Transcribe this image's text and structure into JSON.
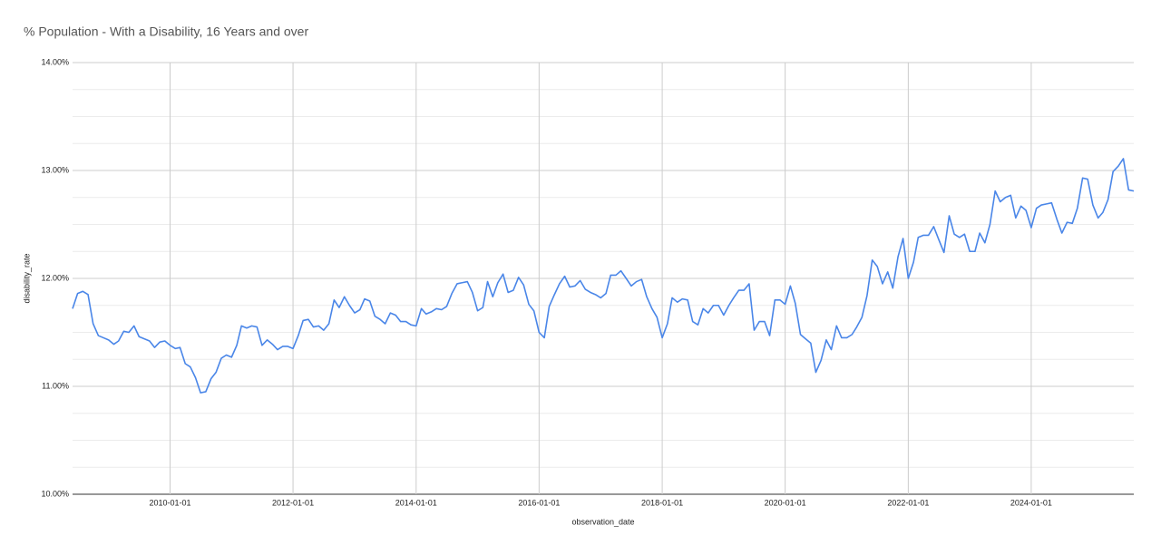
{
  "chart_data": {
    "type": "line",
    "title": "% Population - With a Disability, 16 Years and over",
    "x_label": "observation_date",
    "y_label": "disability_rate",
    "x": [
      "2008-06-01",
      "2008-07-01",
      "2008-08-01",
      "2008-09-01",
      "2008-10-01",
      "2008-11-01",
      "2008-12-01",
      "2009-01-01",
      "2009-02-01",
      "2009-03-01",
      "2009-04-01",
      "2009-05-01",
      "2009-06-01",
      "2009-07-01",
      "2009-08-01",
      "2009-09-01",
      "2009-10-01",
      "2009-11-01",
      "2009-12-01",
      "2010-01-01",
      "2010-02-01",
      "2010-03-01",
      "2010-04-01",
      "2010-05-01",
      "2010-06-01",
      "2010-07-01",
      "2010-08-01",
      "2010-09-01",
      "2010-10-01",
      "2010-11-01",
      "2010-12-01",
      "2011-01-01",
      "2011-02-01",
      "2011-03-01",
      "2011-04-01",
      "2011-05-01",
      "2011-06-01",
      "2011-07-01",
      "2011-08-01",
      "2011-09-01",
      "2011-10-01",
      "2011-11-01",
      "2011-12-01",
      "2012-01-01",
      "2012-02-01",
      "2012-03-01",
      "2012-04-01",
      "2012-05-01",
      "2012-06-01",
      "2012-07-01",
      "2012-08-01",
      "2012-09-01",
      "2012-10-01",
      "2012-11-01",
      "2012-12-01",
      "2013-01-01",
      "2013-02-01",
      "2013-03-01",
      "2013-04-01",
      "2013-05-01",
      "2013-06-01",
      "2013-07-01",
      "2013-08-01",
      "2013-09-01",
      "2013-10-01",
      "2013-11-01",
      "2013-12-01",
      "2014-01-01",
      "2014-02-01",
      "2014-03-01",
      "2014-04-01",
      "2014-05-01",
      "2014-06-01",
      "2014-07-01",
      "2014-08-01",
      "2014-09-01",
      "2014-10-01",
      "2014-11-01",
      "2014-12-01",
      "2015-01-01",
      "2015-02-01",
      "2015-03-01",
      "2015-04-01",
      "2015-05-01",
      "2015-06-01",
      "2015-07-01",
      "2015-08-01",
      "2015-09-01",
      "2015-10-01",
      "2015-11-01",
      "2015-12-01",
      "2016-01-01",
      "2016-02-01",
      "2016-03-01",
      "2016-04-01",
      "2016-05-01",
      "2016-06-01",
      "2016-07-01",
      "2016-08-01",
      "2016-09-01",
      "2016-10-01",
      "2016-11-01",
      "2016-12-01",
      "2017-01-01",
      "2017-02-01",
      "2017-03-01",
      "2017-04-01",
      "2017-05-01",
      "2017-06-01",
      "2017-07-01",
      "2017-08-01",
      "2017-09-01",
      "2017-10-01",
      "2017-11-01",
      "2017-12-01",
      "2018-01-01",
      "2018-02-01",
      "2018-03-01",
      "2018-04-01",
      "2018-05-01",
      "2018-06-01",
      "2018-07-01",
      "2018-08-01",
      "2018-09-01",
      "2018-10-01",
      "2018-11-01",
      "2018-12-01",
      "2019-01-01",
      "2019-02-01",
      "2019-03-01",
      "2019-04-01",
      "2019-05-01",
      "2019-06-01",
      "2019-07-01",
      "2019-08-01",
      "2019-09-01",
      "2019-10-01",
      "2019-11-01",
      "2019-12-01",
      "2020-01-01",
      "2020-02-01",
      "2020-03-01",
      "2020-04-01",
      "2020-05-01",
      "2020-06-01",
      "2020-07-01",
      "2020-08-01",
      "2020-09-01",
      "2020-10-01",
      "2020-11-01",
      "2020-12-01",
      "2021-01-01",
      "2021-02-01",
      "2021-03-01",
      "2021-04-01",
      "2021-05-01",
      "2021-06-01",
      "2021-07-01",
      "2021-08-01",
      "2021-09-01",
      "2021-10-01",
      "2021-11-01",
      "2021-12-01",
      "2022-01-01",
      "2022-02-01",
      "2022-03-01",
      "2022-04-01",
      "2022-05-01",
      "2022-06-01",
      "2022-07-01",
      "2022-08-01",
      "2022-09-01",
      "2022-10-01",
      "2022-11-01",
      "2022-12-01",
      "2023-01-01",
      "2023-02-01",
      "2023-03-01",
      "2023-04-01",
      "2023-05-01",
      "2023-06-01",
      "2023-07-01",
      "2023-08-01",
      "2023-09-01",
      "2023-10-01",
      "2023-11-01",
      "2023-12-01",
      "2024-01-01",
      "2024-02-01",
      "2024-03-01",
      "2024-04-01",
      "2024-05-01",
      "2024-06-01",
      "2024-07-01",
      "2024-08-01",
      "2024-09-01",
      "2024-10-01",
      "2024-11-01",
      "2024-12-01",
      "2025-01-01",
      "2025-02-01",
      "2025-03-01",
      "2025-04-01",
      "2025-05-01",
      "2025-06-01",
      "2025-07-01",
      "2025-08-01",
      "2025-09-01"
    ],
    "series": [
      {
        "name": "disability_rate",
        "color": "#4a86e8",
        "values": [
          11.72,
          11.86,
          11.88,
          11.85,
          11.58,
          11.47,
          11.45,
          11.43,
          11.39,
          11.42,
          11.51,
          11.5,
          11.56,
          11.46,
          11.44,
          11.42,
          11.36,
          11.41,
          11.42,
          11.38,
          11.35,
          11.36,
          11.21,
          11.18,
          11.08,
          10.94,
          10.95,
          11.07,
          11.13,
          11.26,
          11.29,
          11.27,
          11.38,
          11.56,
          11.54,
          11.56,
          11.55,
          11.38,
          11.43,
          11.39,
          11.34,
          11.37,
          11.37,
          11.35,
          11.47,
          11.61,
          11.62,
          11.55,
          11.56,
          11.52,
          11.58,
          11.8,
          11.73,
          11.83,
          11.75,
          11.68,
          11.71,
          11.81,
          11.79,
          11.65,
          11.62,
          11.58,
          11.68,
          11.66,
          11.6,
          11.6,
          11.57,
          11.56,
          11.72,
          11.67,
          11.69,
          11.72,
          11.71,
          11.74,
          11.86,
          11.95,
          11.96,
          11.97,
          11.87,
          11.7,
          11.73,
          11.97,
          11.83,
          11.96,
          12.04,
          11.87,
          11.89,
          12.01,
          11.94,
          11.76,
          11.7,
          11.5,
          11.45,
          11.74,
          11.85,
          11.95,
          12.02,
          11.92,
          11.93,
          11.98,
          11.9,
          11.87,
          11.85,
          11.82,
          11.86,
          12.03,
          12.03,
          12.07,
          12.0,
          11.93,
          11.97,
          11.99,
          11.83,
          11.72,
          11.64,
          11.45,
          11.58,
          11.82,
          11.78,
          11.81,
          11.8,
          11.6,
          11.57,
          11.72,
          11.68,
          11.75,
          11.75,
          11.66,
          11.75,
          11.82,
          11.89,
          11.89,
          11.95,
          11.52,
          11.6,
          11.6,
          11.47,
          11.8,
          11.8,
          11.76,
          11.93,
          11.77,
          11.48,
          11.44,
          11.4,
          11.13,
          11.24,
          11.43,
          11.34,
          11.56,
          11.45,
          11.45,
          11.48,
          11.55,
          11.64,
          11.84,
          12.17,
          12.11,
          11.95,
          12.06,
          11.91,
          12.2,
          12.37,
          12.0,
          12.15,
          12.38,
          12.4,
          12.4,
          12.48,
          12.36,
          12.24,
          12.58,
          12.41,
          12.38,
          12.41,
          12.25,
          12.25,
          12.42,
          12.33,
          12.5,
          12.81,
          12.71,
          12.75,
          12.77,
          12.56,
          12.67,
          12.63,
          12.47,
          12.65,
          12.68,
          12.69,
          12.7,
          12.55,
          12.42,
          12.52,
          12.51,
          12.65,
          12.93,
          12.92,
          12.68,
          12.56,
          12.61,
          12.73,
          12.99,
          13.04,
          13.11,
          12.82,
          12.81
        ]
      }
    ],
    "xlim": [
      "2008-06-01",
      "2025-09-01"
    ],
    "xticks": [
      "2010-01-01",
      "2012-01-01",
      "2014-01-01",
      "2016-01-01",
      "2018-01-01",
      "2020-01-01",
      "2022-01-01",
      "2024-01-01"
    ],
    "ylim": [
      10,
      14
    ],
    "yticks": [
      {
        "value": 10,
        "label": "10.00%"
      },
      {
        "value": 11,
        "label": "11.00%"
      },
      {
        "value": 12,
        "label": "12.00%"
      },
      {
        "value": 13,
        "label": "13.00%"
      },
      {
        "value": 14,
        "label": "14.00%"
      }
    ],
    "minor_yticks": [
      10.25,
      10.5,
      10.75,
      11.25,
      11.5,
      11.75,
      12.25,
      12.5,
      12.75,
      13.25,
      13.5,
      13.75
    ],
    "grid": true
  }
}
